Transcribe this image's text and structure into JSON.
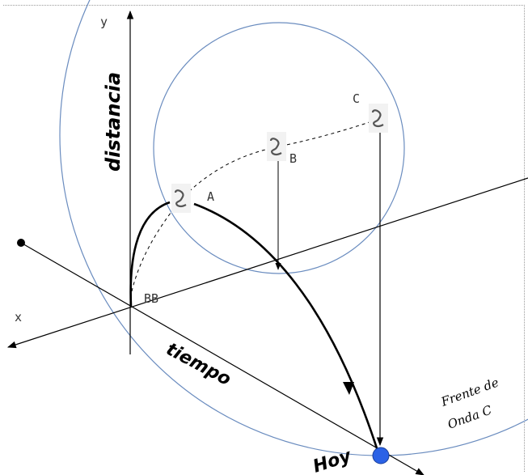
{
  "labels": {
    "y_axis": "y",
    "x_axis": "x",
    "distance": "distancia",
    "time": "tiempo",
    "today": "Hoy",
    "origin": "BB",
    "point_a": "A",
    "point_b": "B",
    "point_c": "C",
    "wavefront_line1": "Frente de",
    "wavefront_line2": "Onda C"
  },
  "colors": {
    "circle_stroke": "#6a8cbf",
    "today_marker": "#2b62e6",
    "axis": "#000000"
  },
  "icons": [
    "wave-symbol-icon"
  ]
}
